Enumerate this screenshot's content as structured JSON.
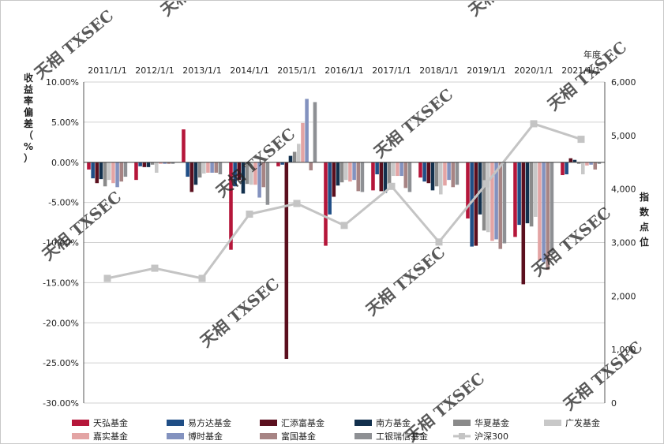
{
  "chart_data": {
    "type": "bar",
    "year_axis_label": "年度",
    "categories": [
      "2011/1/1",
      "2012/1/1",
      "2013/1/1",
      "2014/1/1",
      "2015/1/1",
      "2016/1/1",
      "2017/1/1",
      "2018/1/1",
      "2019/1/1",
      "2020/1/1",
      "2021/1/1"
    ],
    "left_axis": {
      "label": "收益率偏差（%）",
      "ylim": [
        -30,
        10
      ],
      "ticks": [
        10,
        5,
        0,
        -5,
        -10,
        -15,
        -20,
        -25,
        -30
      ],
      "tick_labels": [
        "10.00%",
        "5.00%",
        "0.00%",
        "-5.00%",
        "-10.00%",
        "-15.00%",
        "-20.00%",
        "-25.00%",
        "-30.00%"
      ]
    },
    "right_axis": {
      "label": "指数点位",
      "ylim": [
        0,
        6000
      ],
      "ticks": [
        6000,
        5000,
        4000,
        3000,
        2000,
        1000,
        0
      ],
      "tick_labels": [
        "6,000",
        "5,000",
        "4,000",
        "3,000",
        "2,000",
        "1,000",
        "0"
      ]
    },
    "series": [
      {
        "name": "天弘基金",
        "color": "#b5163a",
        "values": [
          -0.9,
          -2.2,
          4.1,
          -10.9,
          -0.5,
          -10.4,
          -3.5,
          -1.9,
          -7.0,
          -9.3,
          -1.6
        ]
      },
      {
        "name": "易方达基金",
        "color": "#1f4e86",
        "values": [
          -2.0,
          -0.5,
          -1.8,
          -3.0,
          -0.3,
          -6.5,
          -1.5,
          -2.4,
          -10.5,
          -7.8,
          -1.5
        ]
      },
      {
        "name": "汇添富基金",
        "color": "#5b0f1e",
        "values": [
          -2.6,
          -0.6,
          -3.7,
          -2.2,
          -24.5,
          -4.3,
          -3.6,
          -2.6,
          -10.4,
          -15.2,
          0.5
        ]
      },
      {
        "name": "南方基金",
        "color": "#12304d",
        "values": [
          -2.1,
          -0.6,
          -2.8,
          -3.9,
          0.8,
          -2.9,
          -3.8,
          -3.5,
          -6.5,
          -7.6,
          0.3
        ]
      },
      {
        "name": "华夏基金",
        "color": "#8a8a8a",
        "values": [
          -3.0,
          -0.3,
          -1.9,
          -2.7,
          1.3,
          -2.5,
          -2.7,
          -3.0,
          -8.5,
          -8.0,
          -0.2
        ]
      },
      {
        "name": "广发基金",
        "color": "#c8c8c8",
        "values": [
          -2.2,
          -1.3,
          -1.4,
          -2.8,
          2.3,
          -2.2,
          -1.7,
          -4.0,
          -8.7,
          -6.8,
          -1.5
        ]
      },
      {
        "name": "嘉实基金",
        "color": "#e3a4a4",
        "values": [
          -2.6,
          -0.2,
          -1.3,
          -2.8,
          4.9,
          -2.4,
          -1.7,
          -2.9,
          -9.8,
          -12.2,
          -0.4
        ]
      },
      {
        "name": "博时基金",
        "color": "#8392bf",
        "values": [
          -3.1,
          -0.2,
          -1.3,
          -4.4,
          7.9,
          -2.2,
          -1.7,
          -2.2,
          -9.6,
          -12.4,
          -0.3
        ]
      },
      {
        "name": "富国基金",
        "color": "#a78484",
        "values": [
          -2.4,
          -0.2,
          -1.3,
          -3.1,
          -1.0,
          -3.6,
          -3.2,
          -3.1,
          -10.8,
          -13.4,
          -0.9
        ]
      },
      {
        "name": "工银瑞信基金",
        "color": "#8e9094",
        "values": [
          -1.8,
          -0.2,
          -1.5,
          -5.3,
          7.5,
          -3.7,
          -3.7,
          -2.8,
          -10.1,
          -11.3,
          -0.2
        ]
      }
    ],
    "line_series": {
      "name": "沪深300",
      "color": "#c4c4c4",
      "axis": "right",
      "values": [
        2330,
        2520,
        2330,
        3530,
        3730,
        3320,
        4050,
        3010,
        4100,
        5220,
        4930
      ]
    },
    "legend": {
      "position": "bottom"
    }
  },
  "watermark": "天相 TXSEC"
}
